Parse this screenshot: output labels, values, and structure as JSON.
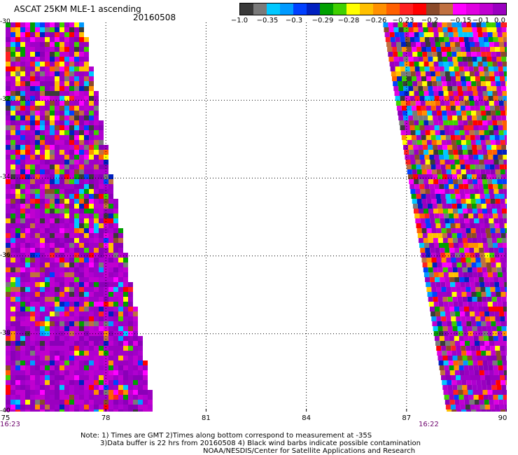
{
  "header": {
    "title": "ASCAT 25KM MLE-1 ascending",
    "date": "20160508"
  },
  "colorbar": {
    "colors": [
      "#3a3a3a",
      "#7a7a7a",
      "#00c8ff",
      "#009aff",
      "#0040ff",
      "#0020c0",
      "#00a000",
      "#40d000",
      "#ffff00",
      "#ffc000",
      "#ff9000",
      "#ff6000",
      "#ff2020",
      "#ff0000",
      "#8b4a2a",
      "#c07040",
      "#ff00ff",
      "#e000e0",
      "#c000d0",
      "#9a00c0"
    ],
    "labels": [
      "−1.0",
      "−0.35",
      "−0.3",
      "−0.29",
      "−0.28",
      "−0.26",
      "−0.23",
      "−0.2",
      "−0.15",
      "−0.1",
      "0.0"
    ]
  },
  "axes": {
    "x_ticks": [
      "75",
      "78",
      "81",
      "84",
      "87",
      "90"
    ],
    "y_ticks": [
      "-30",
      "-32",
      "-34",
      "-36",
      "-38",
      "-40"
    ],
    "time_left": "16:23",
    "time_right": "16:22"
  },
  "chart_data": {
    "type": "heatmap",
    "title": "ASCAT 25KM MLE-1 ascending",
    "date": "20160508",
    "x_range": [
      75,
      90
    ],
    "y_range": [
      -40,
      -30
    ],
    "grid": true,
    "colorbar_range": [
      -1.0,
      0.0
    ],
    "swaths": [
      {
        "name": "west",
        "time": "16:23",
        "lon_range_top": [
          75,
          77.3
        ],
        "lon_range_bottom": [
          75,
          79.4
        ]
      },
      {
        "name": "east",
        "time": "16:22",
        "lon_range_top": [
          86.3,
          90
        ],
        "lon_range_bottom": [
          88.2,
          90
        ]
      }
    ]
  },
  "notes": {
    "line1": "Note: 1) Times are GMT 2)Times along bottom correspond to measurement at -35S",
    "line2": "3)Data buffer is 22 hrs from 20160508 4) Black wind barbs indicate possible contamination",
    "line3": "NOAA/NESDIS/Center for Satellite Applications and Research"
  }
}
